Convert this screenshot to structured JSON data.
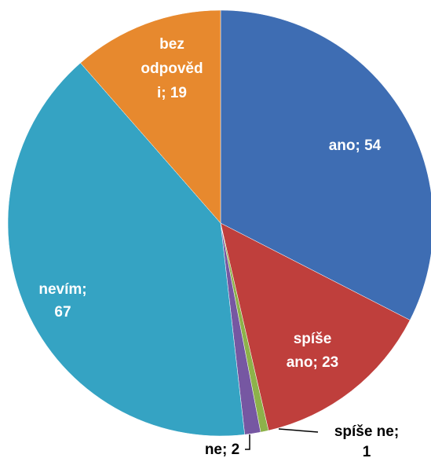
{
  "chart_data": {
    "type": "pie",
    "values": [
      54,
      23,
      1,
      2,
      67,
      19
    ],
    "value_labels": [
      [
        "ano; 54"
      ],
      [
        "spíše",
        "ano; 23"
      ],
      [
        "spíše ne;",
        "1"
      ],
      [
        "ne; 2"
      ],
      [
        "nevím;",
        "67"
      ],
      [
        "bez",
        "odpověd",
        "i; 19"
      ]
    ],
    "colors": [
      "#3e6db3",
      "#bf3f3c",
      "#8db24a",
      "#7657a2",
      "#35a3c3",
      "#e7892e"
    ]
  }
}
